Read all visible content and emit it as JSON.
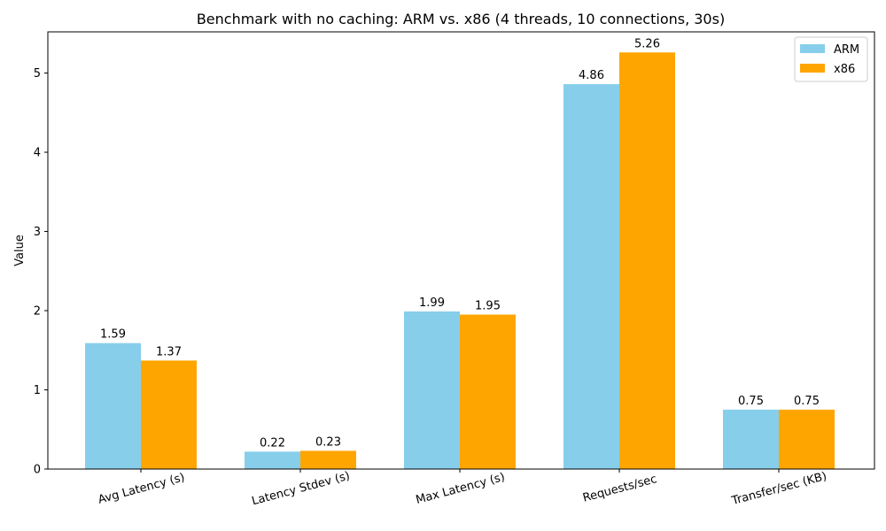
{
  "chart_data": {
    "type": "bar",
    "title": "Benchmark with no caching: ARM vs. x86 (4 threads, 10 connections, 30s)",
    "xlabel": "",
    "ylabel": "Value",
    "categories": [
      "Avg Latency (s)",
      "Latency Stdev (s)",
      "Max Latency (s)",
      "Requests/sec",
      "Transfer/sec (KB)"
    ],
    "series": [
      {
        "name": "ARM",
        "color": "#87CEEB",
        "values": [
          1.59,
          0.22,
          1.99,
          4.86,
          0.75
        ],
        "labels": [
          "1.59",
          "0.22",
          "1.99",
          "4.86",
          "0.75"
        ]
      },
      {
        "name": "x86",
        "color": "#FFA500",
        "values": [
          1.37,
          0.23,
          1.95,
          5.26,
          0.75
        ],
        "labels": [
          "1.37",
          "0.23",
          "1.95",
          "5.26",
          "0.75"
        ]
      }
    ],
    "ylim": [
      0,
      5.52
    ],
    "yticks": [
      0,
      1,
      2,
      3,
      4,
      5
    ],
    "ytick_labels": [
      "0",
      "1",
      "2",
      "3",
      "4",
      "5"
    ],
    "grid": false,
    "legend_position": "top-right"
  }
}
